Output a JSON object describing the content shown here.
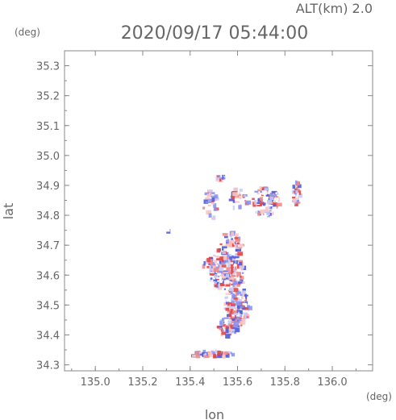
{
  "header": {
    "alt_label": "ALT(km) 2.0",
    "datetime": "2020/09/17 05:44:00"
  },
  "chart_data": {
    "type": "scatter",
    "title": "2020/09/17 05:44:00",
    "xlabel": "lon",
    "ylabel": "lat",
    "x_unit": "(deg)",
    "y_unit": "(deg)",
    "xlim": [
      134.87,
      136.17
    ],
    "ylim": [
      34.28,
      35.35
    ],
    "xticks": [
      135.0,
      135.2,
      135.4,
      135.6,
      135.8,
      136.0
    ],
    "yticks": [
      34.3,
      34.4,
      34.5,
      34.6,
      34.7,
      34.8,
      34.9,
      35.0,
      35.1,
      35.2,
      35.3
    ],
    "grid": false,
    "colors": {
      "positive": "#e05050",
      "negative": "#5060e0",
      "axis": "#888888"
    },
    "clusters": [
      {
        "lon": 135.52,
        "lat": 34.93,
        "rlon": 0.02,
        "rlat": 0.008,
        "n": 20
      },
      {
        "lon": 135.48,
        "lat": 34.84,
        "rlon": 0.03,
        "rlat": 0.05,
        "n": 30
      },
      {
        "lon": 135.6,
        "lat": 34.86,
        "rlon": 0.04,
        "rlat": 0.04,
        "n": 30
      },
      {
        "lon": 135.71,
        "lat": 34.85,
        "rlon": 0.06,
        "rlat": 0.05,
        "n": 90
      },
      {
        "lon": 135.84,
        "lat": 34.88,
        "rlon": 0.02,
        "rlat": 0.04,
        "n": 30
      },
      {
        "lon": 135.3,
        "lat": 34.76,
        "rlon": 0.006,
        "rlat": 0.006,
        "n": 4
      },
      {
        "lon": 135.56,
        "lat": 34.7,
        "rlon": 0.05,
        "rlat": 0.05,
        "n": 70
      },
      {
        "lon": 135.49,
        "lat": 34.64,
        "rlon": 0.04,
        "rlat": 0.03,
        "n": 40
      },
      {
        "lon": 135.55,
        "lat": 34.61,
        "rlon": 0.07,
        "rlat": 0.06,
        "n": 170
      },
      {
        "lon": 135.59,
        "lat": 34.5,
        "rlon": 0.05,
        "rlat": 0.07,
        "n": 130
      },
      {
        "lon": 135.55,
        "lat": 34.43,
        "rlon": 0.04,
        "rlat": 0.03,
        "n": 50
      },
      {
        "lon": 135.48,
        "lat": 34.34,
        "rlon": 0.09,
        "rlat": 0.012,
        "n": 60
      }
    ]
  }
}
